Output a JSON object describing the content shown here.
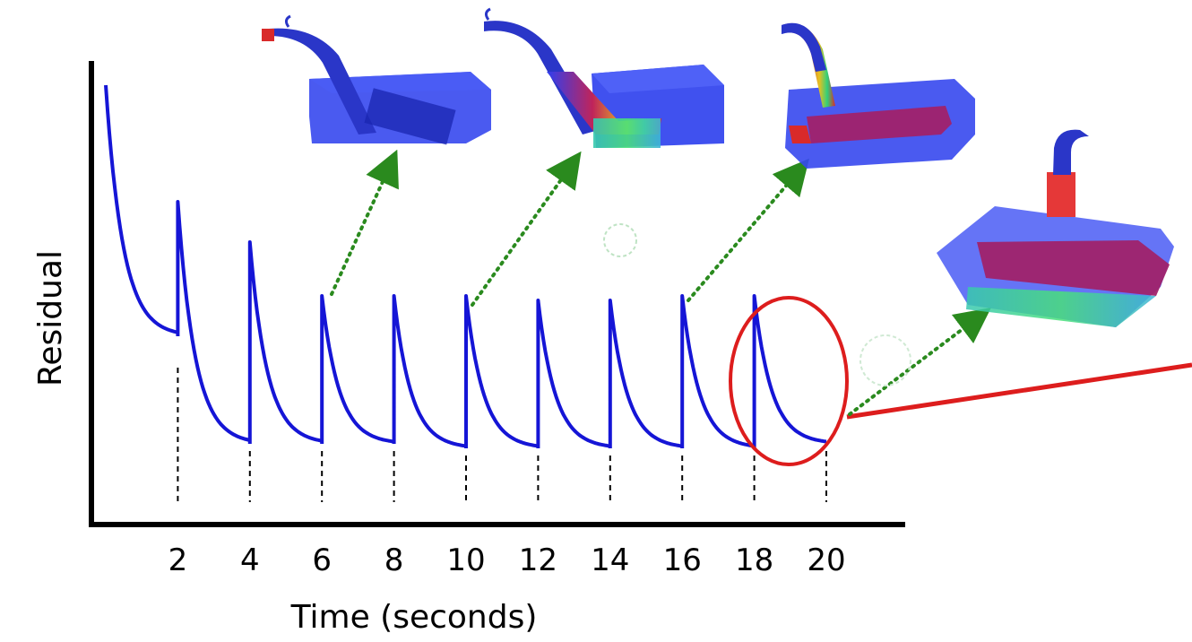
{
  "chart_data": {
    "type": "line",
    "xlabel": "Time (seconds)",
    "ylabel": "Residual",
    "xticks": [
      "2",
      "4",
      "6",
      "8",
      "10",
      "12",
      "14",
      "16",
      "18",
      "20"
    ],
    "xlim": [
      0,
      20
    ],
    "grid": false,
    "series": [
      {
        "style": "sawtooth-decay",
        "segments": [
          {
            "start": 0,
            "end": 2,
            "peak": 0.98,
            "floor": 0.42
          },
          {
            "start": 2,
            "end": 4,
            "peak": 0.72,
            "floor": 0.18
          },
          {
            "start": 4,
            "end": 6,
            "peak": 0.63,
            "floor": 0.18
          },
          {
            "start": 6,
            "end": 8,
            "peak": 0.51,
            "floor": 0.18
          },
          {
            "start": 8,
            "end": 10,
            "peak": 0.51,
            "floor": 0.17
          },
          {
            "start": 10,
            "end": 12,
            "peak": 0.51,
            "floor": 0.17
          },
          {
            "start": 12,
            "end": 14,
            "peak": 0.5,
            "floor": 0.17
          },
          {
            "start": 14,
            "end": 16,
            "peak": 0.5,
            "floor": 0.17
          },
          {
            "start": 16,
            "end": 18,
            "peak": 0.51,
            "floor": 0.17
          },
          {
            "start": 18,
            "end": 20,
            "peak": 0.51,
            "floor": 0.18
          }
        ]
      }
    ],
    "highlight": {
      "shape": "ellipse",
      "around_x": [
        18,
        20
      ]
    },
    "annotations": [
      {
        "kind": "snapshot",
        "at_x": 6,
        "description_icon": "tank-fill-snapshot"
      },
      {
        "kind": "snapshot",
        "at_x": 10,
        "description_icon": "tank-fill-snapshot"
      },
      {
        "kind": "snapshot",
        "at_x": 16,
        "description_icon": "tank-fill-snapshot"
      },
      {
        "kind": "snapshot",
        "at_x": 20,
        "description_icon": "tank-fill-snapshot"
      }
    ]
  },
  "colors": {
    "line": "#1515d6",
    "axis": "#000000",
    "highlight": "#dd1d1d",
    "arrow": "#2a8a1e",
    "tank_body": "#2f3ff0",
    "fluid_red": "#d92a2a"
  }
}
